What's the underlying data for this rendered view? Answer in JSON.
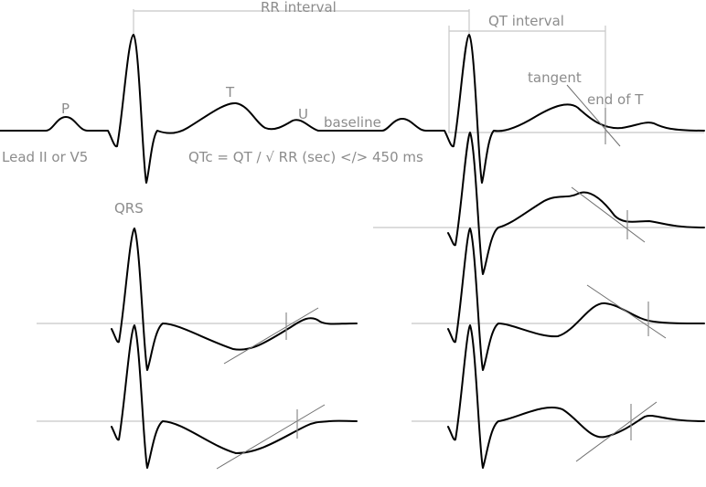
{
  "labels": {
    "rr_interval": "RR interval",
    "qt_interval": "QT interval",
    "tangent": "tangent",
    "end_of_t": "end of T",
    "p": "P",
    "t": "T",
    "u": "U",
    "baseline": "baseline",
    "lead": "Lead II or V5",
    "qrs": "QRS",
    "formula": "QTc = QT / √ RR (sec) </> 450 ms"
  },
  "colors": {
    "waveform": "#000000",
    "label_text": "#8c8c8c",
    "guide_lines": "#c8c8c8"
  }
}
